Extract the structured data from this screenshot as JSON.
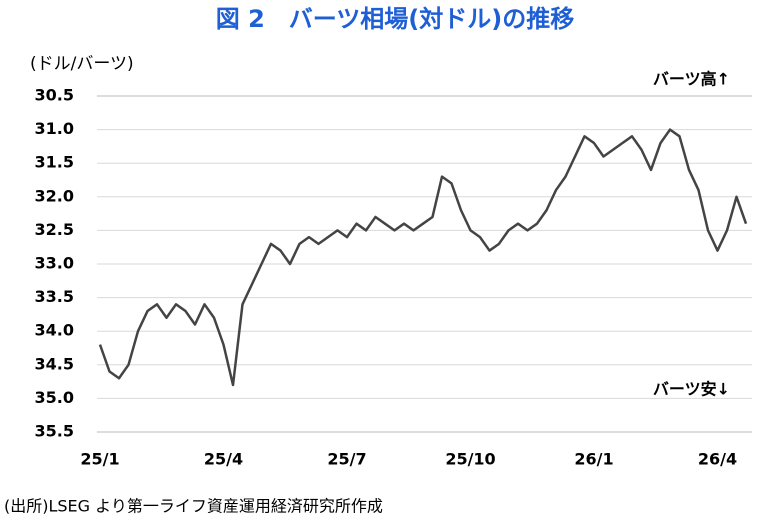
{
  "chart_data": {
    "type": "line",
    "title": "図 2　バーツ相場(対ドル)の推移",
    "y_axis_label": "(ドル/バーツ)",
    "annotations": [
      "バーツ高↑",
      "バーツ安↓"
    ],
    "source": "(出所)LSEG より第一ライフ資産運用経済研究所作成",
    "categories": [
      "25/1",
      null,
      null,
      null,
      null,
      null,
      null,
      null,
      null,
      null,
      null,
      null,
      null,
      "25/4",
      null,
      null,
      null,
      null,
      null,
      null,
      null,
      null,
      null,
      null,
      null,
      null,
      "25/7",
      null,
      null,
      null,
      null,
      null,
      null,
      null,
      null,
      null,
      null,
      null,
      null,
      "25/10",
      null,
      null,
      null,
      null,
      null,
      null,
      null,
      null,
      null,
      null,
      null,
      null,
      "26/1",
      null,
      null,
      null,
      null,
      null,
      null,
      null,
      null,
      null,
      null,
      null,
      null,
      "26/4",
      null,
      null,
      null
    ],
    "series": [
      {
        "name": "バーツ相場",
        "color": "#444444",
        "values": [
          34.2,
          34.6,
          34.7,
          34.5,
          34.0,
          33.7,
          33.6,
          33.8,
          33.6,
          33.7,
          33.9,
          33.6,
          33.8,
          34.2,
          34.8,
          33.6,
          33.3,
          33.0,
          32.7,
          32.8,
          33.0,
          32.7,
          32.6,
          32.7,
          32.6,
          32.5,
          32.6,
          32.4,
          32.5,
          32.3,
          32.4,
          32.5,
          32.4,
          32.5,
          32.4,
          32.3,
          31.7,
          31.8,
          32.2,
          32.5,
          32.6,
          32.8,
          32.7,
          32.5,
          32.4,
          32.5,
          32.4,
          32.2,
          31.9,
          31.7,
          31.4,
          31.1,
          31.2,
          31.4,
          31.3,
          31.2,
          31.1,
          31.3,
          31.6,
          31.2,
          31.0,
          31.1,
          31.6,
          31.9,
          32.5,
          32.8,
          32.5,
          32.0,
          32.4
        ]
      }
    ],
    "ylim": [
      30.5,
      35.5
    ],
    "y_inverted": true,
    "yticks": [
      30.5,
      {
        "value": 31,
        "label": "31.0"
      },
      31.5,
      {
        "value": 32,
        "label": "32.0"
      },
      32.5,
      {
        "value": 33,
        "label": "33.0"
      },
      33.5,
      {
        "value": 34,
        "label": "34.0"
      },
      34.5,
      {
        "value": 35,
        "label": "35.0"
      },
      35.5
    ],
    "grid": true
  }
}
